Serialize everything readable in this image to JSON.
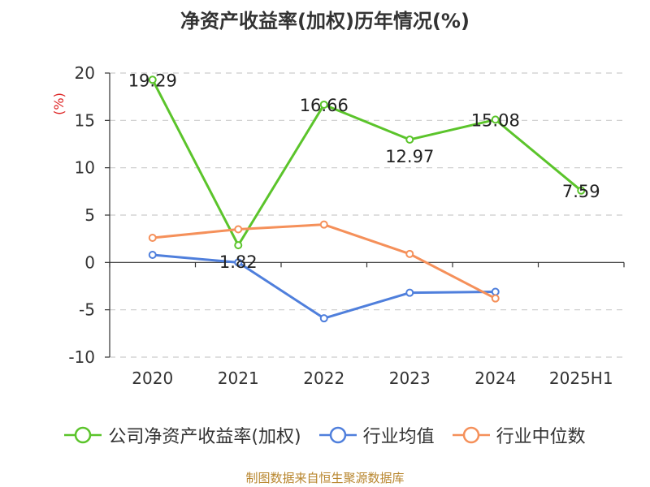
{
  "chart_data": {
    "type": "line",
    "title": "净资产收益率(加权)历年情况(%)",
    "ylabel": "(%)",
    "categories": [
      "2020",
      "2021",
      "2022",
      "2023",
      "2024",
      "2025H1"
    ],
    "ylim": [
      -10,
      20
    ],
    "yticks": [
      -10,
      -5,
      0,
      5,
      10,
      15,
      20
    ],
    "grid": true,
    "legend_position": "bottom",
    "series": [
      {
        "name": "公司净资产收益率(加权)",
        "color": "#5bc42b",
        "show_labels": true,
        "values": [
          19.29,
          1.82,
          16.66,
          12.97,
          15.08,
          7.59
        ]
      },
      {
        "name": "行业均值",
        "color": "#4f7fdc",
        "show_labels": false,
        "values": [
          0.8,
          0.0,
          -5.9,
          -3.2,
          -3.1,
          null
        ]
      },
      {
        "name": "行业中位数",
        "color": "#f5905a",
        "show_labels": false,
        "values": [
          2.6,
          3.5,
          4.0,
          0.9,
          -3.8,
          null
        ]
      }
    ]
  },
  "footer": {
    "source": "制图数据来自恒生聚源数据库"
  }
}
